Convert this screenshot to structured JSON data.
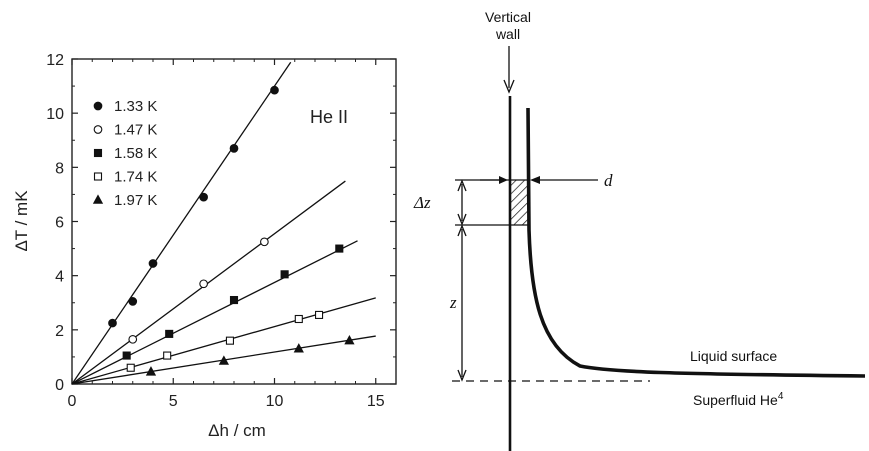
{
  "chart_data": [
    {
      "type": "scatter",
      "title": "",
      "xlabel": "Δh / cm",
      "ylabel": "ΔT / mK",
      "xlim": [
        0,
        16
      ],
      "ylim": [
        0,
        12
      ],
      "xticks": [
        "0",
        "5",
        "10",
        "15"
      ],
      "yticks": [
        "0",
        "2",
        "4",
        "6",
        "8",
        "10",
        "12"
      ],
      "annotation": "He II",
      "legend_position": "top-left",
      "grid": false,
      "series": [
        {
          "name": "1.33 K",
          "marker": "filled-circle",
          "slope": 1.1,
          "points": [
            [
              2.0,
              2.25
            ],
            [
              3.0,
              3.05
            ],
            [
              4.0,
              4.45
            ],
            [
              6.5,
              6.9
            ],
            [
              8.0,
              8.7
            ],
            [
              10.0,
              10.85
            ]
          ]
        },
        {
          "name": "1.47 K",
          "marker": "open-circle",
          "slope": 0.555,
          "points": [
            [
              3.0,
              1.65
            ],
            [
              6.5,
              3.7
            ],
            [
              9.5,
              5.25
            ]
          ]
        },
        {
          "name": "1.58 K",
          "marker": "filled-square",
          "slope": 0.375,
          "points": [
            [
              2.7,
              1.05
            ],
            [
              4.8,
              1.85
            ],
            [
              8.0,
              3.1
            ],
            [
              10.5,
              4.05
            ],
            [
              13.2,
              5.0
            ]
          ]
        },
        {
          "name": "1.74 K",
          "marker": "open-square",
          "slope": 0.212,
          "points": [
            [
              2.9,
              0.6
            ],
            [
              4.7,
              1.05
            ],
            [
              7.8,
              1.6
            ],
            [
              11.2,
              2.4
            ],
            [
              12.2,
              2.55
            ]
          ]
        },
        {
          "name": "1.97 K",
          "marker": "filled-triangle",
          "slope": 0.118,
          "points": [
            [
              3.9,
              0.45
            ],
            [
              7.5,
              0.85
            ],
            [
              11.2,
              1.3
            ],
            [
              13.7,
              1.6
            ]
          ]
        }
      ]
    }
  ],
  "diagram": {
    "wall_label_line1": "Vertical",
    "wall_label_line2": "wall",
    "d_label": "d",
    "dz_label": "Δz",
    "z_label": "z",
    "liquid_surface_label": "Liquid surface",
    "superfluid_label": "Superfluid He",
    "superfluid_superscript": "4"
  }
}
